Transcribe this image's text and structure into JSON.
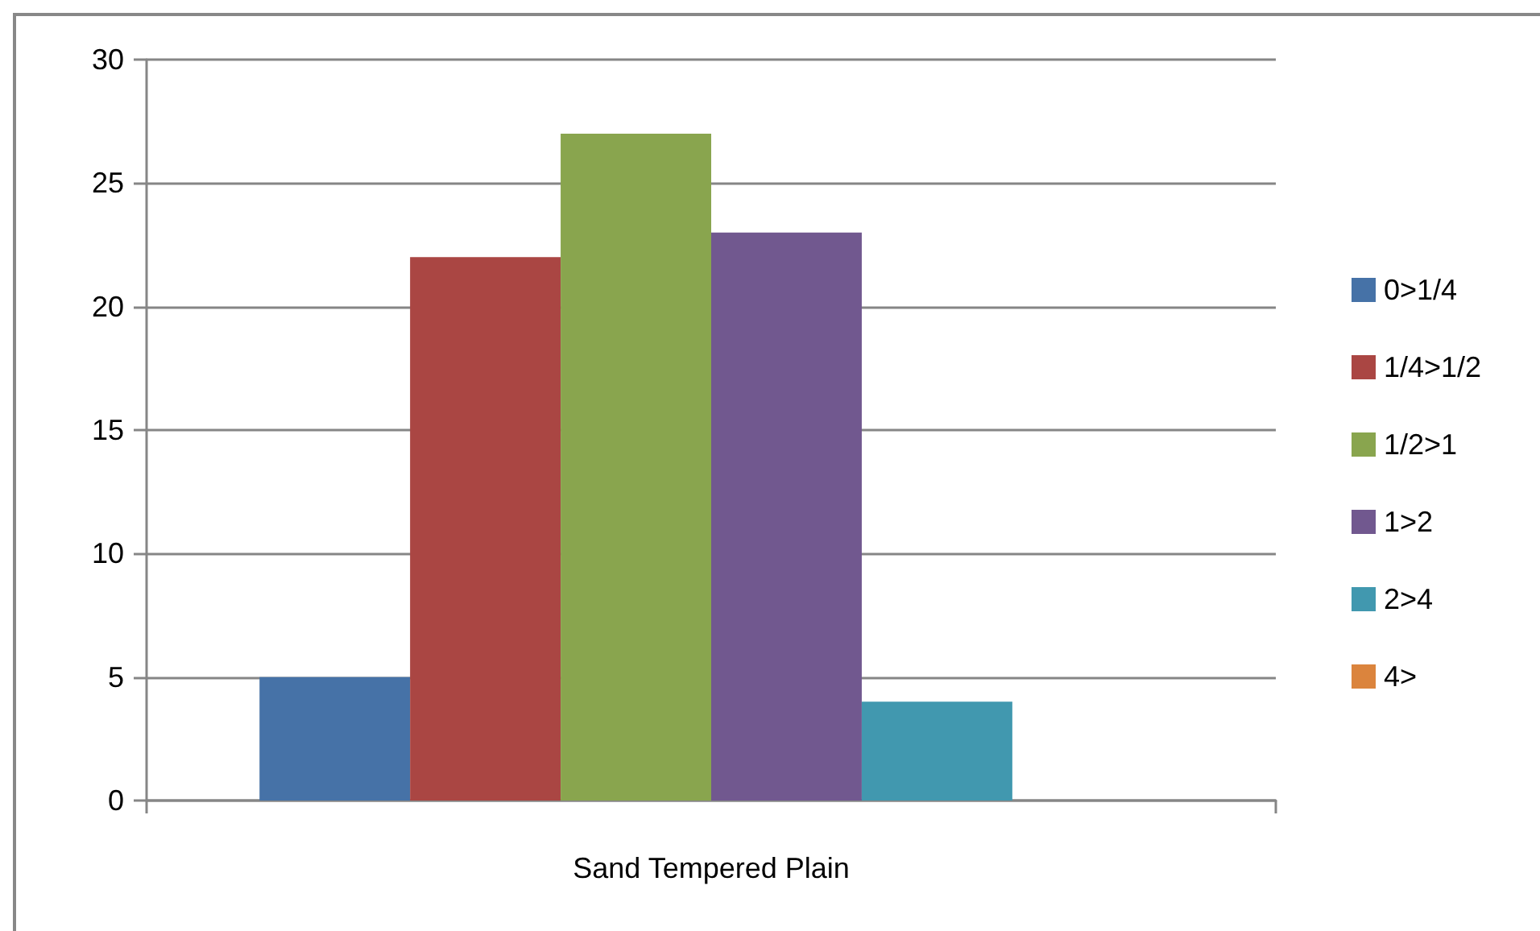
{
  "chart_data": {
    "type": "bar",
    "categories": [
      "Sand Tempered Plain"
    ],
    "series": [
      {
        "name": "0>1/4",
        "color": "#4672a7",
        "values": [
          5
        ]
      },
      {
        "name": "1/4>1/2",
        "color": "#aa4643",
        "values": [
          22
        ]
      },
      {
        "name": "1/2>1",
        "color": "#89a54e",
        "values": [
          27
        ]
      },
      {
        "name": "1>2",
        "color": "#71588f",
        "values": [
          23
        ]
      },
      {
        "name": "2>4",
        "color": "#4198af",
        "values": [
          4
        ]
      },
      {
        "name": "4>",
        "color": "#db843d",
        "values": [
          0
        ]
      }
    ],
    "ylim": [
      0,
      30
    ],
    "yticks": [
      0,
      5,
      10,
      15,
      20,
      25,
      30
    ],
    "grid": "y",
    "legend": "right"
  }
}
